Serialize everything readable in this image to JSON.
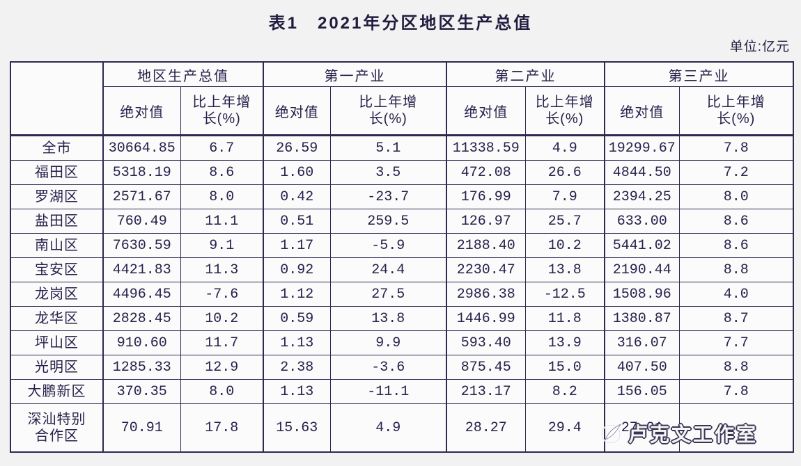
{
  "page": {
    "title": "表1　2021年分区地区生产总值",
    "unit_label": "单位:亿元"
  },
  "watermark": {
    "text": "卢克文工作室"
  },
  "colors": {
    "ink": "#2e2950",
    "table_background": "#fbfbfb",
    "page_background": "#f2f2f2",
    "watermark_fill": "#f7f6f3"
  },
  "table": {
    "corner_label": "",
    "groups": [
      {
        "label": "地区生产总值"
      },
      {
        "label": "第一产业"
      },
      {
        "label": "第二产业"
      },
      {
        "label": "第三产业"
      }
    ],
    "subheaders": {
      "absolute": "绝对值",
      "growth": "比上年增\n长(%)"
    },
    "rows": [
      {
        "region": "全市",
        "values": [
          "30664.85",
          "6.7",
          "26.59",
          "5.1",
          "11338.59",
          "4.9",
          "19299.67",
          "7.8"
        ]
      },
      {
        "region": "福田区",
        "values": [
          "5318.19",
          "8.6",
          "1.60",
          "3.5",
          "472.08",
          "26.6",
          "4844.50",
          "7.2"
        ]
      },
      {
        "region": "罗湖区",
        "values": [
          "2571.67",
          "8.0",
          "0.42",
          "-23.7",
          "176.99",
          "7.9",
          "2394.25",
          "8.0"
        ]
      },
      {
        "region": "盐田区",
        "values": [
          "760.49",
          "11.1",
          "0.51",
          "259.5",
          "126.97",
          "25.7",
          "633.00",
          "8.6"
        ]
      },
      {
        "region": "南山区",
        "values": [
          "7630.59",
          "9.1",
          "1.17",
          "-5.9",
          "2188.40",
          "10.2",
          "5441.02",
          "8.6"
        ]
      },
      {
        "region": "宝安区",
        "values": [
          "4421.83",
          "11.3",
          "0.92",
          "24.4",
          "2230.47",
          "13.8",
          "2190.44",
          "8.8"
        ]
      },
      {
        "region": "龙岗区",
        "values": [
          "4496.45",
          "-7.6",
          "1.12",
          "27.5",
          "2986.38",
          "-12.5",
          "1508.96",
          "4.0"
        ]
      },
      {
        "region": "龙华区",
        "values": [
          "2828.45",
          "10.2",
          "0.59",
          "13.8",
          "1446.99",
          "11.8",
          "1380.87",
          "8.7"
        ]
      },
      {
        "region": "坪山区",
        "values": [
          "910.60",
          "11.7",
          "1.13",
          "9.9",
          "593.40",
          "13.9",
          "316.07",
          "7.7"
        ]
      },
      {
        "region": "光明区",
        "values": [
          "1285.33",
          "12.9",
          "2.38",
          "-3.6",
          "875.45",
          "15.0",
          "407.50",
          "8.8"
        ]
      },
      {
        "region": "大鹏新区",
        "values": [
          "370.35",
          "8.0",
          "1.13",
          "-11.1",
          "213.17",
          "8.2",
          "156.05",
          "7.8"
        ]
      },
      {
        "region": "深汕特别\n合作区",
        "values": [
          "70.91",
          "17.8",
          "15.63",
          "4.9",
          "28.27",
          "29.4",
          "27.01",
          ""
        ]
      }
    ]
  }
}
